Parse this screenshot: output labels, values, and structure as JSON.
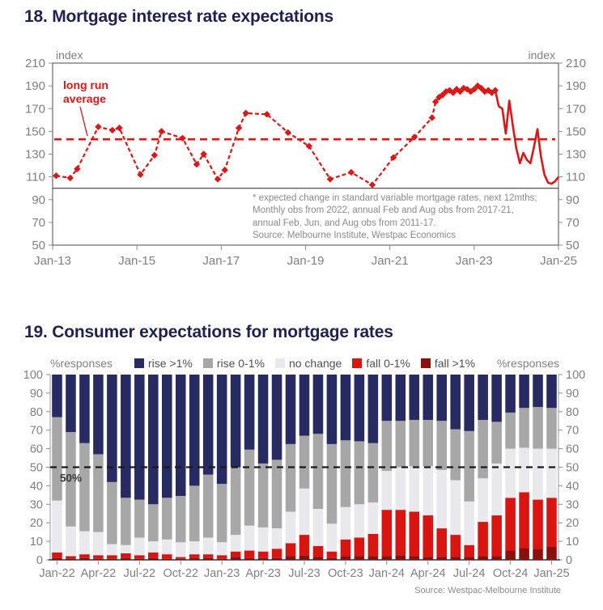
{
  "chart_data": [
    {
      "type": "line",
      "title": "18. Mortgage interest rate expectations",
      "y_axis": {
        "min": 50,
        "max": 210,
        "step": 20,
        "unit_label": "index"
      },
      "x_axis": {
        "tick_labels": [
          "Jan-13",
          "Jan-15",
          "Jan-17",
          "Jan-19",
          "Jan-21",
          "Jan-23",
          "Jan-25"
        ],
        "months_total": 144
      },
      "reference_line": 100,
      "long_run_average": {
        "value": 143,
        "label_lines": [
          "long run",
          "average"
        ]
      },
      "series_note": "month index 0 = Jan-13; value = expectations index",
      "points_dashed_with_markers": [
        [
          1,
          111
        ],
        [
          5,
          109
        ],
        [
          7,
          117
        ],
        [
          13,
          154
        ],
        [
          17,
          151
        ],
        [
          19,
          153
        ],
        [
          25,
          112
        ],
        [
          29,
          129
        ],
        [
          31,
          150
        ],
        [
          37,
          144
        ],
        [
          41,
          121
        ],
        [
          43,
          130
        ],
        [
          47,
          108
        ],
        [
          49,
          116
        ],
        [
          53,
          153
        ],
        [
          55,
          166
        ],
        [
          61,
          165
        ],
        [
          67,
          149
        ],
        [
          73,
          137
        ],
        [
          79,
          108
        ],
        [
          85,
          114
        ],
        [
          91,
          103
        ],
        [
          97,
          127
        ],
        [
          103,
          145
        ]
      ],
      "points_monthly_markers": [
        [
          108,
          162
        ],
        [
          109,
          176
        ],
        [
          110,
          180
        ],
        [
          111,
          182
        ],
        [
          112,
          185
        ],
        [
          113,
          186
        ],
        [
          114,
          184
        ],
        [
          115,
          187
        ],
        [
          116,
          185
        ],
        [
          117,
          188
        ],
        [
          118,
          187
        ],
        [
          119,
          185
        ],
        [
          120,
          187
        ],
        [
          121,
          190
        ],
        [
          122,
          188
        ],
        [
          123,
          185
        ],
        [
          124,
          186
        ],
        [
          125,
          184
        ],
        [
          126,
          186
        ]
      ],
      "points_monthly_solid": [
        [
          126,
          186
        ],
        [
          127,
          172
        ],
        [
          128,
          170
        ],
        [
          129,
          148
        ],
        [
          130,
          177
        ],
        [
          131,
          155
        ],
        [
          132,
          135
        ],
        [
          133,
          122
        ],
        [
          134,
          131
        ],
        [
          135,
          125
        ],
        [
          136,
          122
        ],
        [
          137,
          136
        ],
        [
          138,
          152
        ],
        [
          139,
          128
        ],
        [
          140,
          112
        ],
        [
          141,
          105
        ],
        [
          142,
          104
        ],
        [
          143,
          106
        ],
        [
          144,
          110
        ]
      ],
      "footnote_lines": [
        "* expected change in standard variable mortgage rates, next 12mths;",
        "Monthly obs from 2022, annual Feb and Aug obs from 2017-21,",
        "annual  Feb, Jun, and Aug obs from 2011-17.",
        "Source: Melbourne Institute, Westpac Economics"
      ],
      "colors": {
        "line": "#dc1715",
        "axis_text": "#7f7f7f",
        "box": "#4b4b4b",
        "reference": "#3d3d3d"
      }
    },
    {
      "type": "stacked_bar",
      "title": "19. Consumer expectations for mortgage rates",
      "y_axis": {
        "min": 0,
        "max": 100,
        "step": 10,
        "unit_label": "%responses"
      },
      "categories": [
        "Jan-22",
        "Feb-22",
        "Mar-22",
        "Apr-22",
        "May-22",
        "Jun-22",
        "Jul-22",
        "Aug-22",
        "Sep-22",
        "Oct-22",
        "Nov-22",
        "Dec-22",
        "Jan-23",
        "Feb-23",
        "Mar-23",
        "Apr-23",
        "May-23",
        "Jun-23",
        "Jul-23",
        "Aug-23",
        "Sep-23",
        "Oct-23",
        "Nov-23",
        "Dec-23",
        "Jan-24",
        "Feb-24",
        "Mar-24",
        "Apr-24",
        "May-24",
        "Jun-24",
        "Jul-24",
        "Aug-24",
        "Sep-24",
        "Oct-24",
        "Nov-24",
        "Dec-24",
        "Jan-25"
      ],
      "x_tick_every": 3,
      "series": [
        {
          "name": "fall >1%",
          "color": "#8e0d0d",
          "values": [
            1,
            0.5,
            1,
            0.5,
            0.5,
            1,
            0.5,
            1,
            0.5,
            0.5,
            1,
            1,
            0.5,
            1.5,
            1,
            1,
            1,
            2,
            2.5,
            1.5,
            1,
            2,
            2,
            2,
            2,
            2.5,
            2,
            1.5,
            1.5,
            1.5,
            1.5,
            2,
            2,
            5,
            6.5,
            6,
            7
          ]
        },
        {
          "name": "fall 0-1%",
          "color": "#d91411",
          "values": [
            3,
            1.5,
            2,
            2,
            2,
            2.5,
            2,
            3,
            2.5,
            1,
            2,
            2,
            2,
            3,
            4,
            3.5,
            5,
            7,
            11,
            6,
            3.5,
            9,
            10,
            12,
            25,
            24.5,
            24,
            22.5,
            15.5,
            12,
            6.5,
            18.5,
            22,
            28.5,
            30,
            26.5,
            26.5
          ]
        },
        {
          "name": "no change",
          "color": "#e8e8ed",
          "values": [
            28,
            16,
            12.5,
            12.5,
            6,
            4.5,
            9.5,
            6,
            8,
            8,
            7,
            9,
            7,
            9,
            13.5,
            13,
            11,
            17,
            25,
            20,
            15,
            17.5,
            18,
            17,
            21,
            23,
            24.5,
            26.5,
            31.5,
            29.5,
            23.5,
            23.5,
            28,
            26.5,
            24,
            27.5,
            26.5
          ]
        },
        {
          "name": "rise 0-1%",
          "color": "#a7a7a7",
          "values": [
            45,
            51,
            47.5,
            42,
            33.5,
            25.5,
            20.5,
            20,
            22.5,
            25,
            30,
            34,
            31.5,
            36.5,
            41,
            34.5,
            37,
            36.5,
            28.5,
            40.5,
            43,
            36,
            34,
            32,
            27,
            25,
            25,
            25,
            26.5,
            27.5,
            38,
            31.5,
            22.5,
            19.5,
            21.5,
            22.5,
            22
          ]
        },
        {
          "name": "rise >1%",
          "color": "#282a62",
          "values": [
            23,
            31,
            37,
            43,
            58,
            66.5,
            67.5,
            70,
            66.5,
            65.5,
            60,
            54,
            59,
            50,
            40.5,
            48,
            46,
            37.5,
            33,
            32,
            37.5,
            35.5,
            36,
            37,
            25,
            25,
            24.5,
            24.5,
            25,
            29.5,
            30.5,
            24.5,
            25.5,
            20.5,
            18,
            17.5,
            18
          ]
        }
      ],
      "legend": [
        {
          "label": "rise >1%",
          "color": "#282a62"
        },
        {
          "label": "rise 0-1%",
          "color": "#a7a7a7"
        },
        {
          "label": "no change",
          "color": "#e8e8ed"
        },
        {
          "label": "fall 0-1%",
          "color": "#d91411"
        },
        {
          "label": "fall >1%",
          "color": "#8e0d0d"
        }
      ],
      "reference_line": {
        "value": 50,
        "label": "50%"
      },
      "source": "Source: Westpac-Melbourne Institute",
      "colors": {
        "axis_text": "#7f7f7f",
        "axis_line": "#999999",
        "baseline": "#333333",
        "reference": "#1a1a1a"
      }
    }
  ]
}
